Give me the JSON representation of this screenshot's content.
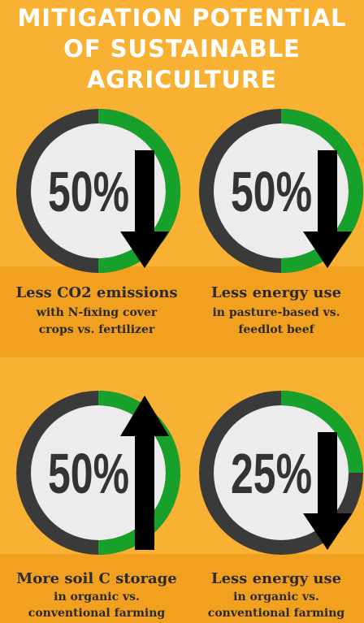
{
  "title": [
    "MITIGATION POTENTIAL",
    "OF SUSTAINABLE",
    "AGRICULTURE"
  ],
  "ring_color": "#3a3a3a",
  "fill_color": "#f8b133",
  "band_color": "#f2a01f",
  "panels": [
    {
      "value": 50,
      "value_label": "50%",
      "arrow": "down",
      "color": "#17a02a",
      "caption": [
        "Less CO2 emissions",
        "with N-fixing cover",
        "crops vs. fertilizer"
      ]
    },
    {
      "value": 50,
      "value_label": "50%",
      "arrow": "down",
      "color": "#17a02a",
      "caption": [
        "Less energy use",
        "in pasture-based vs.",
        "feedlot beef"
      ]
    },
    {
      "value": 50,
      "value_label": "50%",
      "arrow": "up",
      "color": "#17a02a",
      "caption": [
        "More soil C storage",
        "in organic vs.",
        "conventional farming"
      ]
    },
    {
      "value": 25,
      "value_label": "25%",
      "arrow": "down",
      "color": "#17a02a",
      "caption": [
        "Less energy use",
        "in organic vs.",
        "conventional farming"
      ]
    }
  ]
}
